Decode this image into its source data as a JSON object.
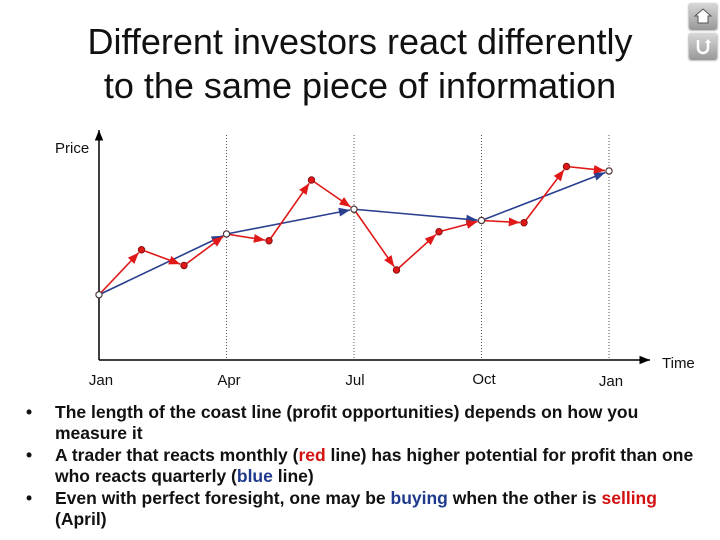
{
  "slide": {
    "title_line1": "Different investors react differently",
    "title_line2": "to the same piece of information",
    "nav": {
      "home_icon": "home-icon",
      "return_icon": "return-icon"
    }
  },
  "chart_data": {
    "type": "line",
    "title": "",
    "xlabel": "Time",
    "ylabel": "Price",
    "x_ticks": [
      "Jan",
      "Apr",
      "Jul",
      "Oct",
      "Jan"
    ],
    "grid": "vertical dotted lines at each tick",
    "ylim": [
      0,
      100
    ],
    "series": [
      {
        "color": "#e01818",
        "x": [
          0,
          1,
          2,
          3,
          4,
          5,
          6,
          7,
          8,
          9,
          10,
          11,
          12
        ],
        "values": [
          29,
          49,
          42,
          56,
          53,
          80,
          67,
          40,
          57,
          62,
          61,
          86,
          84
        ]
      },
      {
        "color": "#2a3f8f",
        "x": [
          0,
          3,
          6,
          9,
          12
        ],
        "values": [
          29,
          56,
          67,
          62,
          84
        ]
      }
    ],
    "colors": {
      "axis": "#000000",
      "grid": "#555555",
      "marker_fill": "#ffffff"
    }
  },
  "bullets": [
    {
      "parts": [
        {
          "text": "The length of the coast line (profit opportunities) depends on how you measure it",
          "style": ""
        }
      ]
    },
    {
      "parts": [
        {
          "text": "A trader that reacts monthly (",
          "style": ""
        },
        {
          "text": "red",
          "style": "red"
        },
        {
          "text": " line) has higher potential for profit than one who reacts quarterly (",
          "style": ""
        },
        {
          "text": "blue",
          "style": "blue"
        },
        {
          "text": " line)",
          "style": ""
        }
      ]
    },
    {
      "parts": [
        {
          "text": "Even with perfect foresight, one may be ",
          "style": ""
        },
        {
          "text": "buying",
          "style": "blue"
        },
        {
          "text": " when the other is ",
          "style": ""
        },
        {
          "text": "selling",
          "style": "red"
        },
        {
          "text": " (April)",
          "style": ""
        }
      ]
    }
  ]
}
